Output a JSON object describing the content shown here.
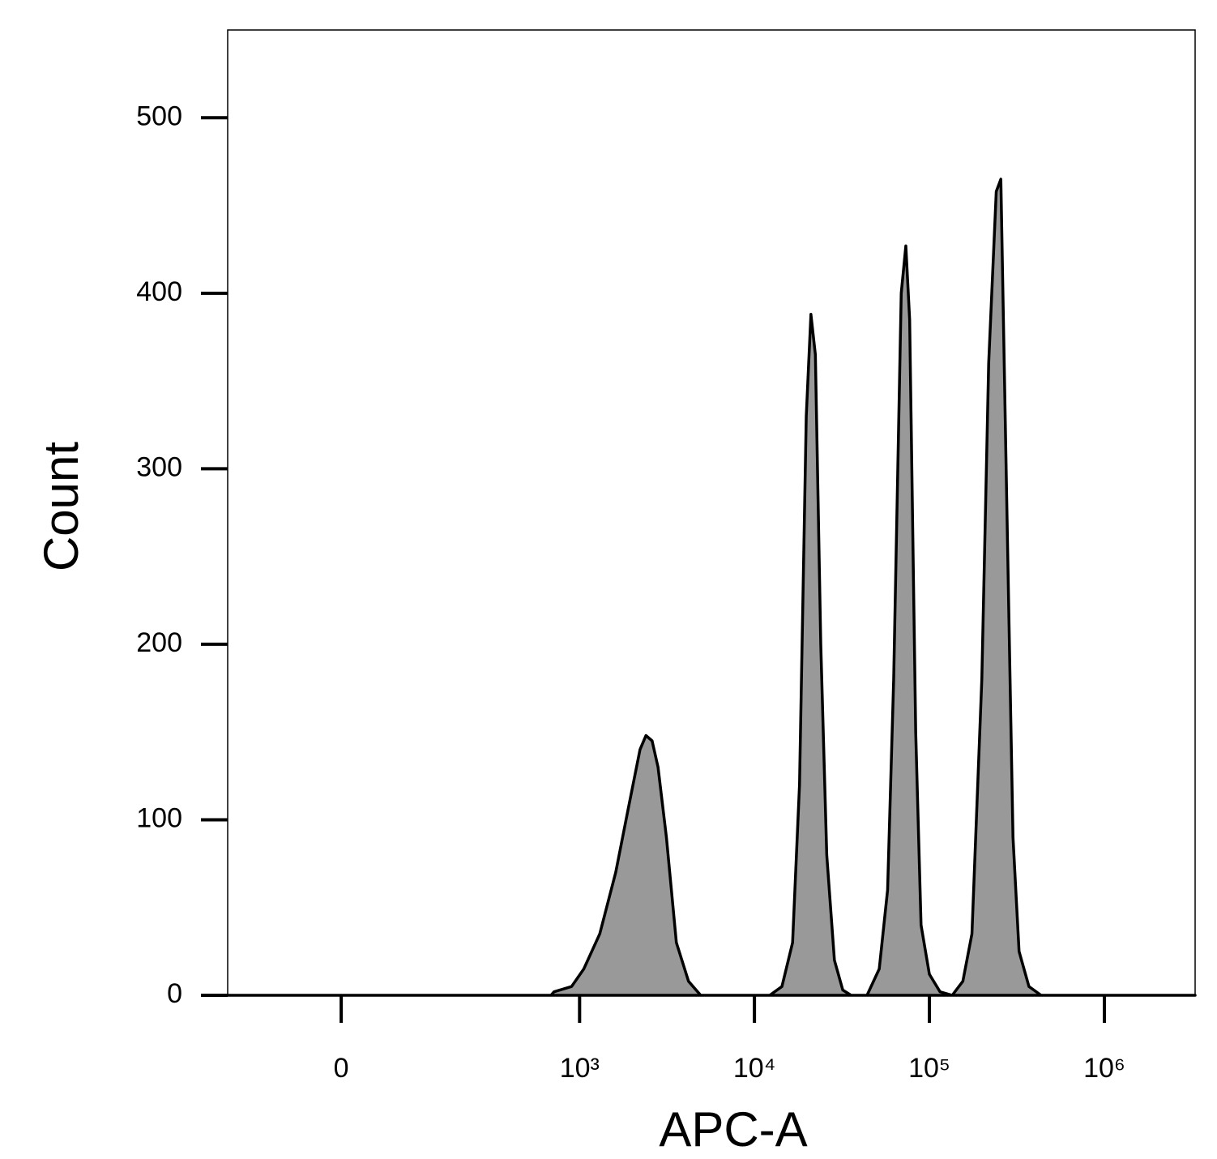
{
  "chart_data": {
    "type": "area",
    "xlabel": "APC-A",
    "ylabel": "Count",
    "xscale": "asinh",
    "x": [
      -184,
      685,
      713,
      900,
      1057,
      1305,
      1610,
      1888,
      2218,
      2398,
      2600,
      2812,
      3140,
      3580,
      4200,
      4930,
      12230,
      14360,
      16520,
      18100,
      19780,
      21030,
      22300,
      23940,
      25900,
      28650,
      31980,
      35680,
      44000,
      51670,
      57680,
      62480,
      69020,
      73330,
      77100,
      83500,
      89600,
      99970,
      115000,
      135000,
      155300,
      175000,
      199300,
      218100,
      241000,
      256000,
      274500,
      300400,
      325400,
      370500,
      434800,
      3300000
    ],
    "series": [
      {
        "color": "#999999",
        "values": [
          0,
          0,
          2,
          5,
          15,
          35,
          70,
          105,
          140,
          148,
          145,
          130,
          90,
          30,
          8,
          0,
          0,
          5,
          30,
          120,
          330,
          388,
          365,
          200,
          80,
          20,
          3,
          0,
          0,
          15,
          60,
          180,
          400,
          427,
          385,
          150,
          40,
          12,
          2,
          0,
          8,
          35,
          180,
          360,
          458,
          465,
          300,
          90,
          25,
          5,
          0,
          0
        ]
      }
    ],
    "xlim": [
      -184,
      3300000
    ],
    "xticks": [
      0,
      {
        "value": 1000,
        "label": "10³"
      },
      {
        "value": 10000,
        "label": "10⁴"
      },
      {
        "value": 100000,
        "label": "10⁵"
      },
      {
        "value": 1000000,
        "label": "10⁶"
      }
    ],
    "ylim": [
      0,
      550
    ],
    "yticks": [
      0,
      100,
      200,
      300,
      400,
      500
    ]
  }
}
